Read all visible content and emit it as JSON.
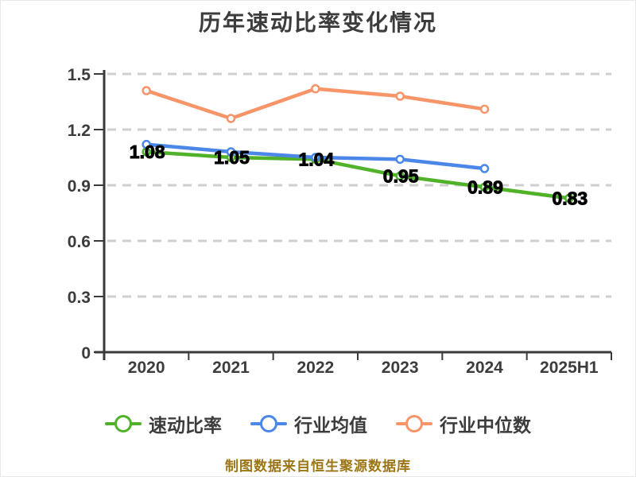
{
  "header": {
    "title": "历年速动比率变化情况"
  },
  "chart_data": {
    "type": "line",
    "title": "历年速动比率变化情况",
    "categories": [
      "2020",
      "2021",
      "2022",
      "2023",
      "2024",
      "2025H1"
    ],
    "series": [
      {
        "name": "速动比率",
        "color": "#4fb229",
        "values": [
          1.08,
          1.05,
          1.04,
          0.95,
          0.89,
          0.83
        ],
        "point_labels": [
          "1.08",
          "1.05",
          "1.04",
          "0.95",
          "0.89",
          "0.83"
        ]
      },
      {
        "name": "行业均值",
        "color": "#4a87e8",
        "values": [
          1.12,
          1.08,
          1.05,
          1.04,
          0.99
        ]
      },
      {
        "name": "行业中位数",
        "color": "#f79569",
        "values": [
          1.41,
          1.26,
          1.42,
          1.38,
          1.31
        ]
      }
    ],
    "xlabel": "",
    "ylabel": "",
    "ylim": [
      0,
      1.5
    ],
    "yticks": [
      0,
      0.3,
      0.6,
      0.9,
      1.2,
      1.5
    ],
    "ytick_labels": [
      "0",
      "0.3",
      "0.6",
      "0.9",
      "1.2",
      "1.5"
    ],
    "grid": "horizontal-dashed",
    "legend_position": "bottom"
  },
  "legend": {
    "items": [
      {
        "label": "速动比率",
        "color": "#4fb229"
      },
      {
        "label": "行业均值",
        "color": "#4a87e8"
      },
      {
        "label": "行业中位数",
        "color": "#f79569"
      }
    ]
  },
  "footer": {
    "text": "制图数据来自恒生聚源数据库"
  }
}
